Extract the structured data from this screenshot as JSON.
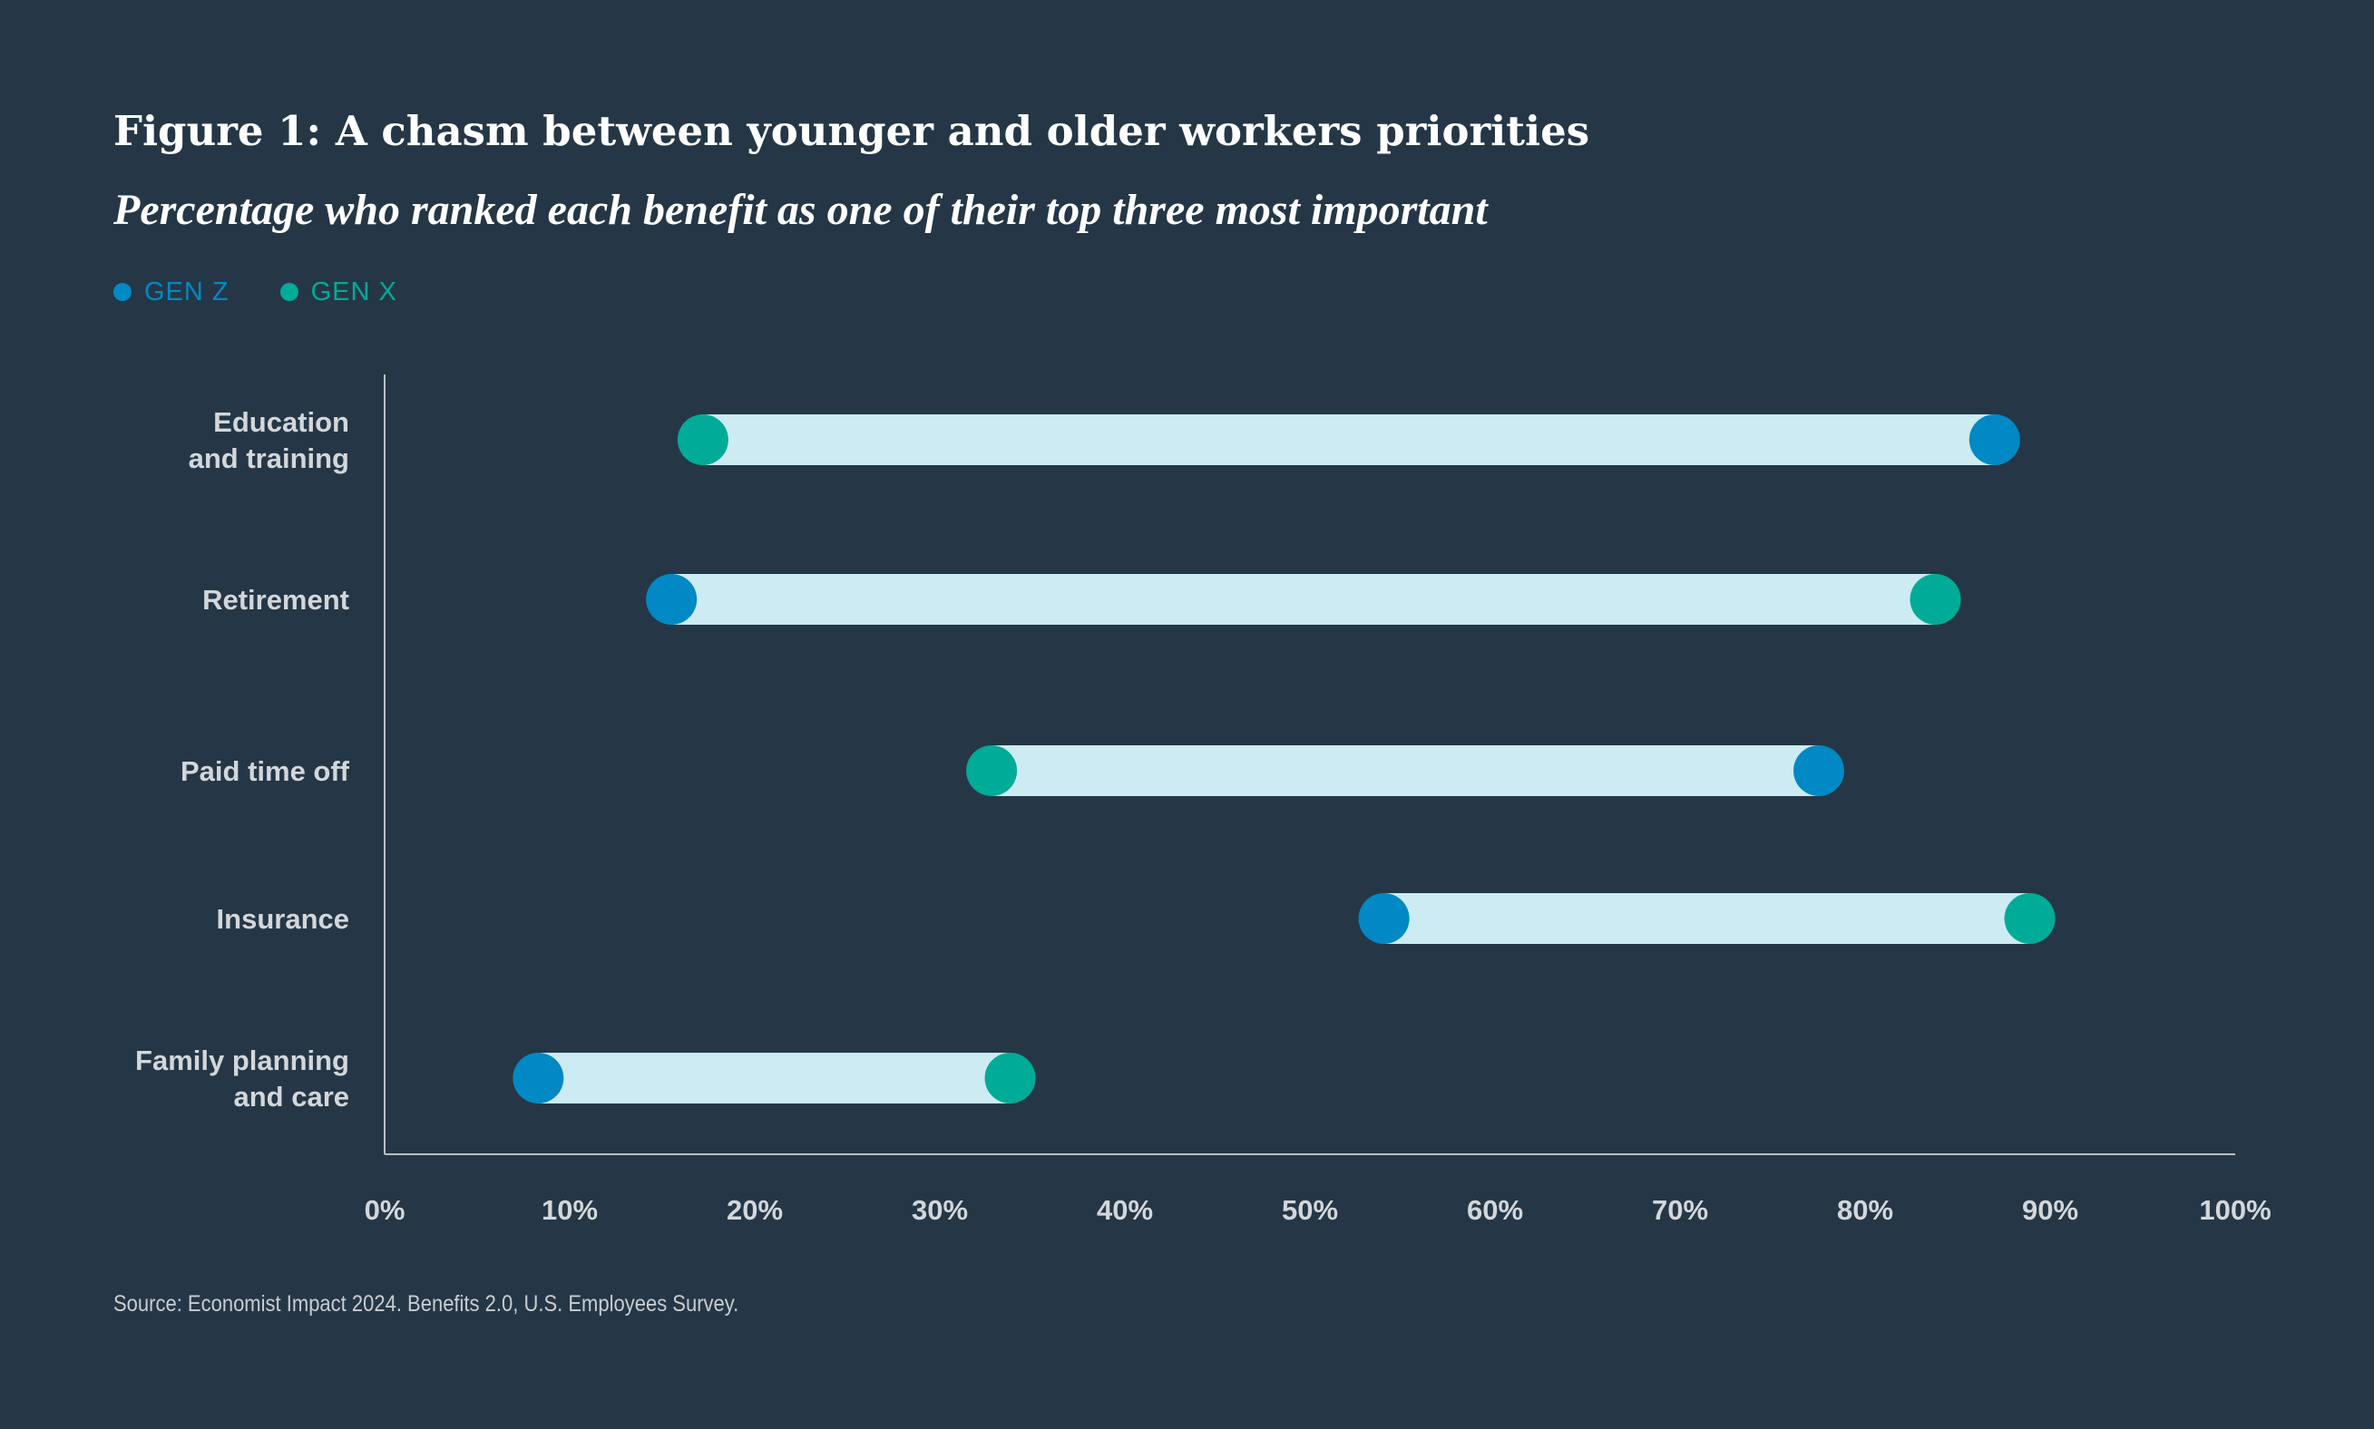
{
  "chart_data": {
    "type": "dumbbell",
    "title": "Figure 1: A chasm between younger and older workers priorities",
    "subtitle": "Percentage who ranked each benefit as one of their top three most important",
    "xlim": [
      0,
      100
    ],
    "x_ticks": [
      "0%",
      "10%",
      "20%",
      "30%",
      "40%",
      "50%",
      "60%",
      "70%",
      "80%",
      "90%",
      "100%"
    ],
    "categories": [
      [
        "Education",
        "and training"
      ],
      [
        "Retirement"
      ],
      [
        "Paid time off"
      ],
      [
        "Insurance"
      ],
      [
        "Family planning",
        "and care"
      ]
    ],
    "series": [
      {
        "name": "GEN Z",
        "color": "#0089c4",
        "values": [
          87,
          15.5,
          77.5,
          54,
          8.3
        ]
      },
      {
        "name": "GEN X",
        "color": "#00ab97",
        "values": [
          17.2,
          83.8,
          32.8,
          88.9,
          33.8
        ]
      }
    ],
    "bar_color": "#cdebf2",
    "axis_color": "#b8bfc6",
    "label_color": "#d3d7db",
    "source": "Source: Economist Impact 2024. Benefits 2.0, U.S. Employees Survey."
  }
}
